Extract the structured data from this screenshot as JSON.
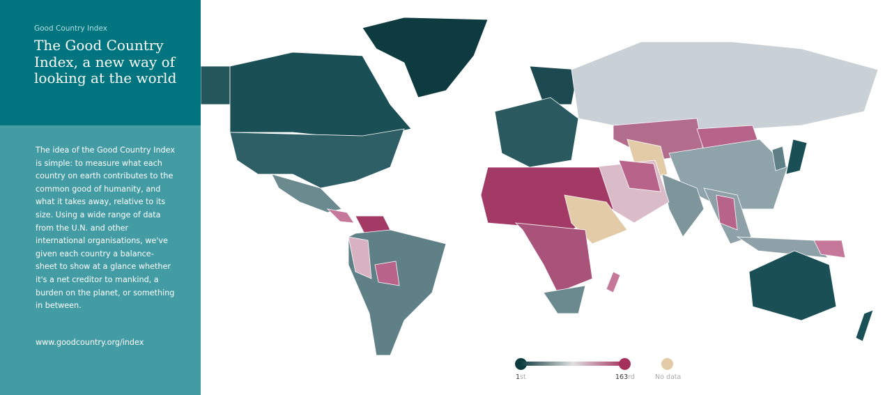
{
  "sidebar": {
    "eyebrow": "Good Country Index",
    "title": "The Good Country Index, a new way of looking at the world",
    "description": "The idea of the Good Country Index is simple: to measure what each country on earth contributes to the common good of humanity, and what it takes away, relative to its size. Using a wide range of data from the U.N. and other international organisations, we've given each country a balance-sheet to show at a glance whether it's a net creditor to mankind, a burden on the planet, or something in between.",
    "link": "www.goodcountry.org/index"
  },
  "legend": {
    "min_num": "1",
    "min_suffix": "st",
    "max_num": "163",
    "max_suffix": "rd",
    "no_data": "No data",
    "colors": {
      "best": "#0d3b40",
      "mid": "#e0e0e0",
      "worst": "#a5305c",
      "no_data": "#e3cba8"
    }
  }
}
